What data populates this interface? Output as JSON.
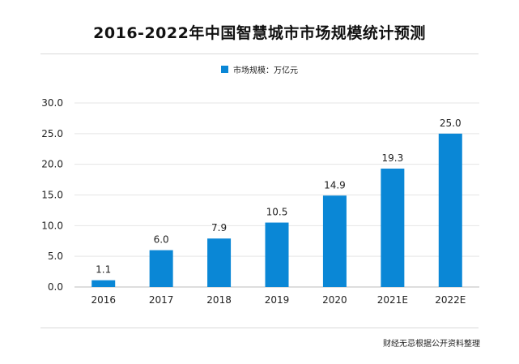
{
  "title": "2016-2022年中国智慧城市市场规模统计预测",
  "legend": {
    "label": "市场规模：万亿元"
  },
  "source": "财经无忌根据公开资料整理",
  "colors": {
    "bar": "#0a87d6",
    "grid": "#e5e5e5",
    "axis": "#bdbdbd"
  },
  "chart_data": {
    "type": "bar",
    "categories": [
      "2016",
      "2017",
      "2018",
      "2019",
      "2020",
      "2021E",
      "2022E"
    ],
    "series": [
      {
        "name": "市场规模：万亿元",
        "values": [
          1.1,
          6.0,
          7.9,
          10.5,
          14.9,
          19.3,
          25.0
        ]
      }
    ],
    "value_labels": [
      "1.1",
      "6.0",
      "7.9",
      "10.5",
      "14.9",
      "19.3",
      "25.0"
    ],
    "ylim": [
      0,
      30
    ],
    "yticks": [
      "0.0",
      "5.0",
      "10.0",
      "15.0",
      "20.0",
      "25.0",
      "30.0"
    ],
    "title": "2016-2022年中国智慧城市市场规模统计预测",
    "xlabel": "",
    "ylabel": "",
    "grid": true,
    "legend_position": "top-center"
  }
}
